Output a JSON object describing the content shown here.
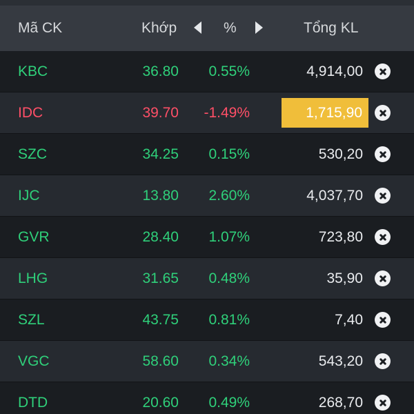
{
  "header": {
    "symbol": "Mã CK",
    "price": "Khớp",
    "percent": "%",
    "volume": "Tổng KL",
    "prev_icon": "caret-left-icon",
    "next_icon": "caret-right-icon"
  },
  "colors": {
    "up": "#2fd07a",
    "down": "#ff4f67",
    "highlight": "#f0be3a"
  },
  "rows": [
    {
      "symbol": "KBC",
      "price": "36.80",
      "change": "0.55%",
      "volume": "4,914,00",
      "trend": "up",
      "highlight": false
    },
    {
      "symbol": "IDC",
      "price": "39.70",
      "change": "-1.49%",
      "volume": "1,715,90",
      "trend": "down",
      "highlight": true
    },
    {
      "symbol": "SZC",
      "price": "34.25",
      "change": "0.15%",
      "volume": "530,20",
      "trend": "up",
      "highlight": false
    },
    {
      "symbol": "IJC",
      "price": "13.80",
      "change": "2.60%",
      "volume": "4,037,70",
      "trend": "up",
      "highlight": false
    },
    {
      "symbol": "GVR",
      "price": "28.40",
      "change": "1.07%",
      "volume": "723,80",
      "trend": "up",
      "highlight": false
    },
    {
      "symbol": "LHG",
      "price": "31.65",
      "change": "0.48%",
      "volume": "35,90",
      "trend": "up",
      "highlight": false
    },
    {
      "symbol": "SZL",
      "price": "43.75",
      "change": "0.81%",
      "volume": "7,40",
      "trend": "up",
      "highlight": false
    },
    {
      "symbol": "VGC",
      "price": "58.60",
      "change": "0.34%",
      "volume": "543,20",
      "trend": "up",
      "highlight": false
    },
    {
      "symbol": "DTD",
      "price": "20.60",
      "change": "0.49%",
      "volume": "268,70",
      "trend": "up",
      "highlight": false
    }
  ]
}
